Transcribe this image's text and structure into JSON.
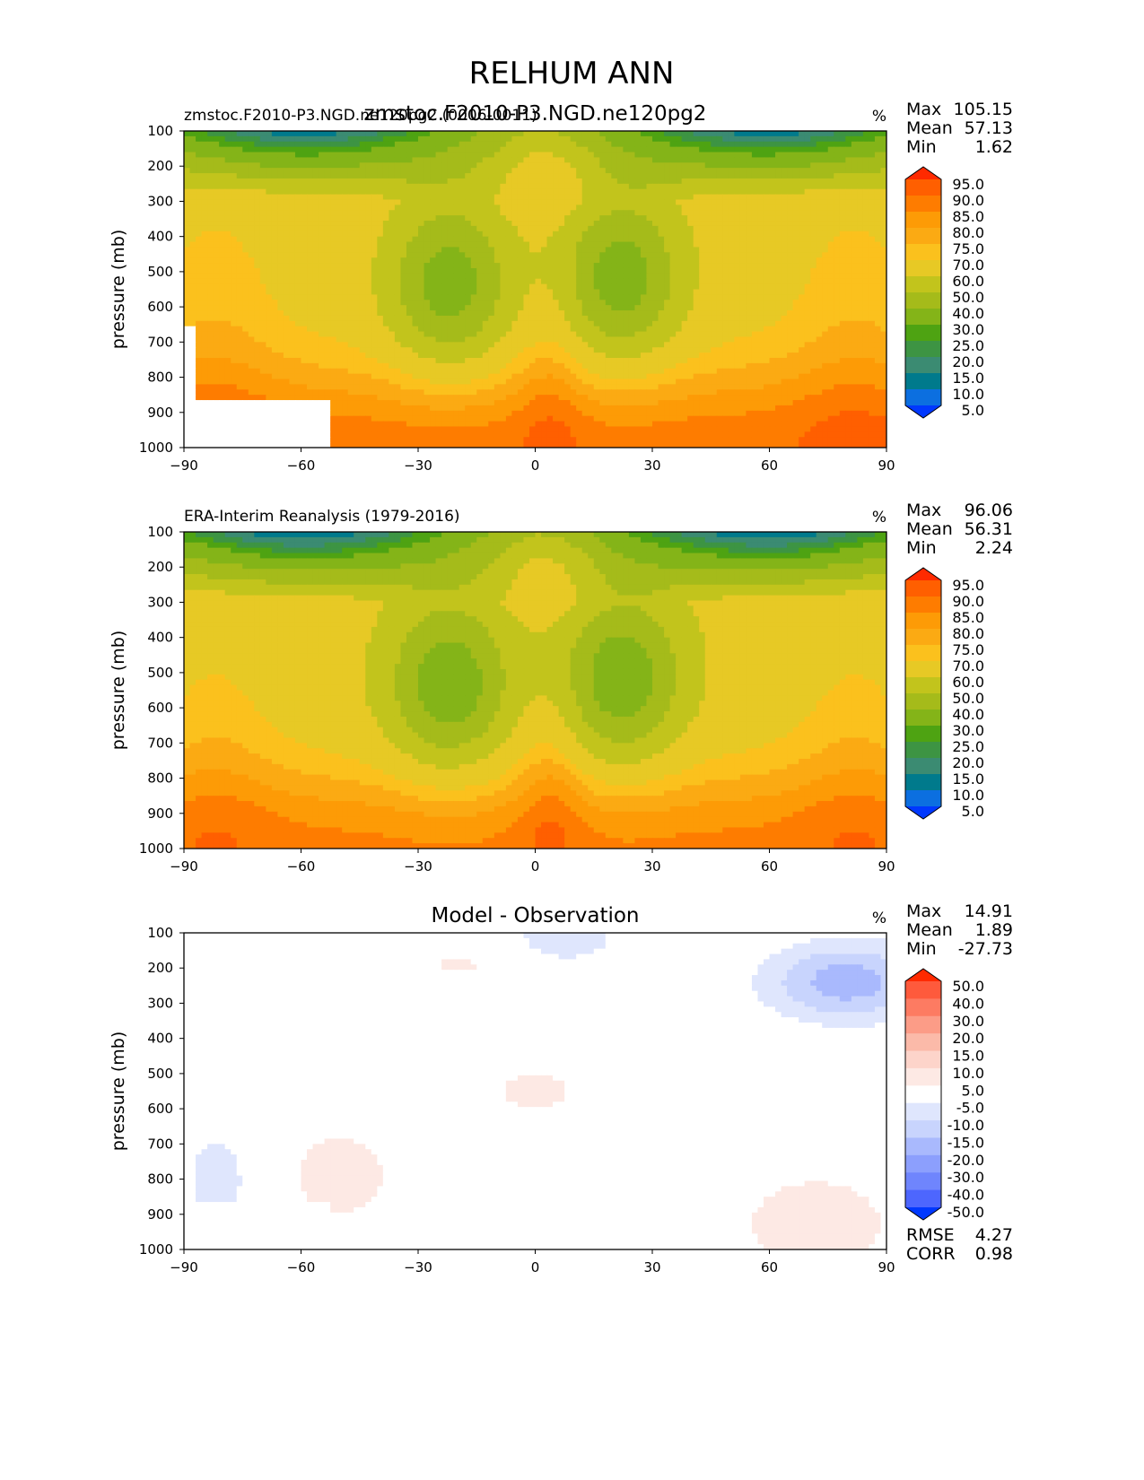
{
  "chart_data": [
    {
      "type": "contour",
      "figure_title": "RELHUM ANN",
      "title_left": "zmstoc.F2010-P3.NGD.ne120pg2 (0006-0011)",
      "title_center": "zmstoc.F2010-P3.NGD.ne120pg2",
      "units": "%",
      "xlabel": "",
      "ylabel": "pressure (mb)",
      "xlim": [
        -90,
        90
      ],
      "ylim": [
        1000,
        100
      ],
      "xticks": [
        "−90",
        "−60",
        "−30",
        "0",
        "30",
        "60",
        "90"
      ],
      "yticks": [
        "100",
        "200",
        "300",
        "400",
        "500",
        "600",
        "700",
        "800",
        "900",
        "1000"
      ],
      "stats": {
        "max_label": "Max",
        "max": "105.15",
        "mean_label": "Mean",
        "mean": "57.13",
        "min_label": "Min",
        "min": "1.62"
      },
      "levels": [
        "95.0",
        "90.0",
        "85.0",
        "80.0",
        "75.0",
        "70.0",
        "60.0",
        "50.0",
        "40.0",
        "30.0",
        "25.0",
        "20.0",
        "15.0",
        "10.0",
        "5.0"
      ],
      "colors": [
        "#ff2a00",
        "#ff5f00",
        "#fe7c00",
        "#fd9b06",
        "#fbaa13",
        "#fbc11d",
        "#e7c925",
        "#c2c41c",
        "#a5bb1a",
        "#84b418",
        "#4ea312",
        "#3d9443",
        "#3b8b72",
        "#007a8c",
        "#0c6fe0",
        "#0038fe"
      ],
      "field": {
        "kind": "model",
        "rh_base": 62
      }
    },
    {
      "type": "contour",
      "title_left": "ERA-Interim Reanalysis (1979-2016)",
      "units": "%",
      "ylabel": "pressure (mb)",
      "xlim": [
        -90,
        90
      ],
      "ylim": [
        1000,
        100
      ],
      "xticks": [
        "−90",
        "−60",
        "−30",
        "0",
        "30",
        "60",
        "90"
      ],
      "yticks": [
        "100",
        "200",
        "300",
        "400",
        "500",
        "600",
        "700",
        "800",
        "900",
        "1000"
      ],
      "stats": {
        "max_label": "Max",
        "max": "96.06",
        "mean_label": "Mean",
        "mean": "56.31",
        "min_label": "Min",
        "min": "2.24"
      },
      "levels": [
        "95.0",
        "90.0",
        "85.0",
        "80.0",
        "75.0",
        "70.0",
        "60.0",
        "50.0",
        "40.0",
        "30.0",
        "25.0",
        "20.0",
        "15.0",
        "10.0",
        "5.0"
      ],
      "colors": [
        "#ff2a00",
        "#ff5f00",
        "#fe7c00",
        "#fd9b06",
        "#fbaa13",
        "#fbc11d",
        "#e7c925",
        "#c2c41c",
        "#a5bb1a",
        "#84b418",
        "#4ea312",
        "#3d9443",
        "#3b8b72",
        "#007a8c",
        "#0c6fe0",
        "#0038fe"
      ],
      "field": {
        "kind": "obs",
        "rh_base": 60
      }
    },
    {
      "type": "contour",
      "title_center": "Model - Observation",
      "units": "%",
      "ylabel": "pressure (mb)",
      "xlim": [
        -90,
        90
      ],
      "ylim": [
        1000,
        100
      ],
      "xticks": [
        "−90",
        "−60",
        "−30",
        "0",
        "30",
        "60",
        "90"
      ],
      "yticks": [
        "100",
        "200",
        "300",
        "400",
        "500",
        "600",
        "700",
        "800",
        "900",
        "1000"
      ],
      "stats": {
        "max_label": "Max",
        "max": "14.91",
        "mean_label": "Mean",
        "mean": "1.89",
        "min_label": "Min",
        "min": "-27.73"
      },
      "extra_stats": {
        "rmse_label": "RMSE",
        "rmse": "4.27",
        "corr_label": "CORR",
        "corr": "0.98"
      },
      "levels": [
        "50.0",
        "40.0",
        "30.0",
        "20.0",
        "15.0",
        "10.0",
        "5.0",
        "-5.0",
        "-10.0",
        "-15.0",
        "-20.0",
        "-30.0",
        "-40.0",
        "-50.0"
      ],
      "colors": [
        "#ff2a00",
        "#fe5a3c",
        "#fd7b62",
        "#fc9c87",
        "#fbbaa9",
        "#fdd4ca",
        "#fde9e4",
        "#ffffff",
        "#dfe6fd",
        "#c8d4fd",
        "#a9b9fd",
        "#8c9ffd",
        "#6f85fd",
        "#4d66fe",
        "#0038fe"
      ],
      "field": {
        "kind": "diff"
      }
    }
  ]
}
